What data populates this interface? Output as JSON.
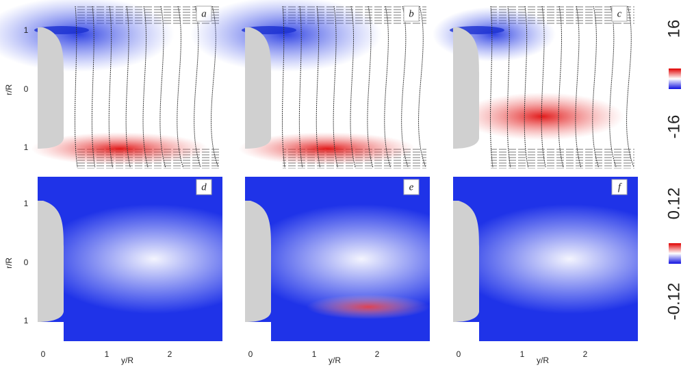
{
  "panels": [
    {
      "label": "a"
    },
    {
      "label": "b"
    },
    {
      "label": "c"
    },
    {
      "label": "d"
    },
    {
      "label": "e"
    },
    {
      "label": "f"
    }
  ],
  "axes": {
    "y_label": "r/R",
    "x_label": "y/R",
    "y_ticks": [
      "1",
      "0",
      "1"
    ],
    "x_ticks": [
      "0",
      "1",
      "2"
    ]
  },
  "colorbars": [
    {
      "max": "16",
      "min": "-16"
    },
    {
      "max": "0.12",
      "min": "-0.12"
    }
  ]
}
